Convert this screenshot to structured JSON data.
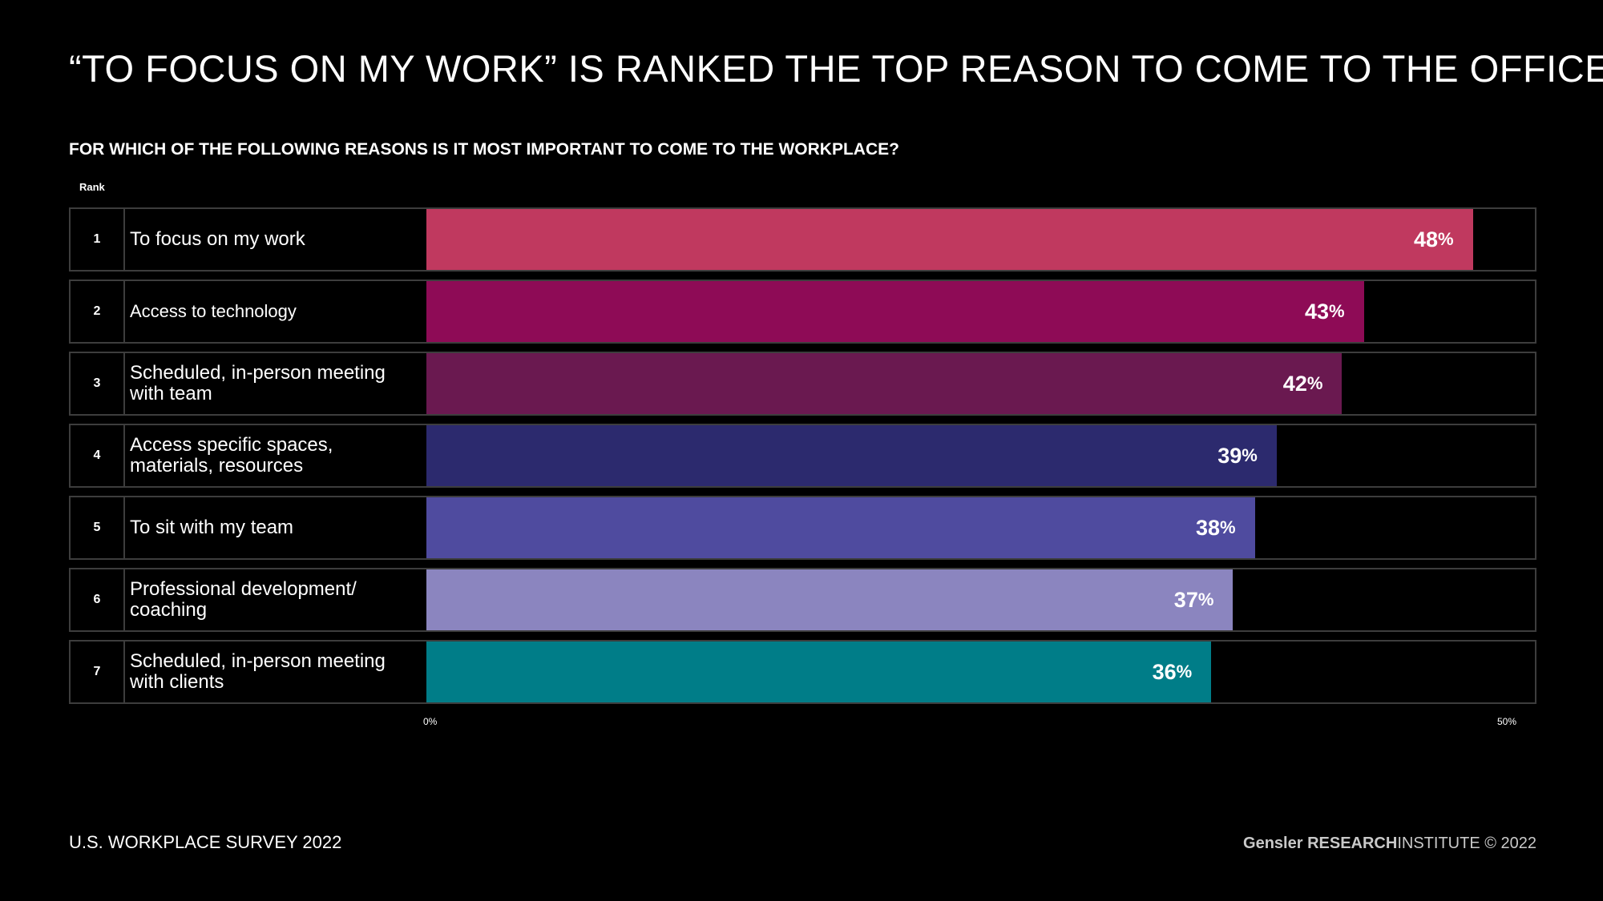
{
  "title": "“TO FOCUS ON MY WORK” IS RANKED THE TOP REASON TO COME TO THE OFFICE",
  "subtitle": "FOR WHICH OF THE FOLLOWING REASONS IS IT MOST IMPORTANT TO COME TO THE WORKPLACE?",
  "rank_header": "Rank",
  "footer": {
    "left": "U.S. WORKPLACE SURVEY 2022",
    "brand": "Gensler",
    "brand_bold": "RESEARCH",
    "brand_rest": "INSTITUTE © 2022"
  },
  "chart_data": {
    "type": "bar",
    "orientation": "horizontal",
    "title": "",
    "xlabel": "",
    "ylabel": "",
    "xlim": [
      0,
      50
    ],
    "tick_labels": [
      "0%",
      "50%"
    ],
    "grid": false,
    "legend": "none",
    "unit": "%",
    "categories": [
      "To focus on my work",
      "Access to technology",
      "Scheduled, in-person meeting\nwith team",
      "Access specific spaces,\nmaterials, resources",
      "To sit with my team",
      "Professional development/\ncoaching",
      "Scheduled, in-person meeting\nwith clients"
    ],
    "ranks": [
      "1",
      "2",
      "3",
      "4",
      "5",
      "6",
      "7"
    ],
    "values": [
      48,
      43,
      42,
      39,
      38,
      37,
      36
    ],
    "colors": [
      "#c0395f",
      "#8e0b56",
      "#6a1950",
      "#2c2a6e",
      "#4f4b9f",
      "#8b85bf",
      "#007d88"
    ]
  }
}
